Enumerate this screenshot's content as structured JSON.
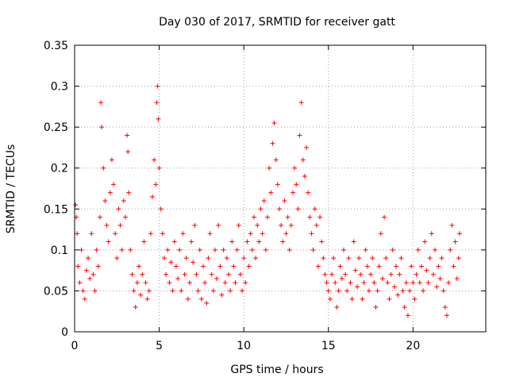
{
  "chart_data": {
    "type": "scatter",
    "title": "Day 030 of 2017, SRMTID for receiver gatt",
    "xlabel": "GPS time / hours",
    "ylabel": "SRMTID / TECUs",
    "xlim": [
      0,
      24.3
    ],
    "ylim": [
      0,
      0.35
    ],
    "xticks": [
      0,
      5,
      10,
      15,
      20
    ],
    "xtick_labels": [
      "0",
      "5",
      "10",
      "15",
      "20"
    ],
    "yticks": [
      0,
      0.05,
      0.1,
      0.15,
      0.2,
      0.25,
      0.3,
      0.35
    ],
    "ytick_labels": [
      "0",
      "0.05",
      "0.1",
      "0.15",
      "0.2",
      "0.25",
      "0.3",
      "0.35"
    ],
    "grid": true,
    "marker": "+",
    "color": "#ff0000",
    "series": [
      {
        "name": "SRMTID",
        "points": [
          [
            0.05,
            0.155
          ],
          [
            0.1,
            0.14
          ],
          [
            0.15,
            0.12
          ],
          [
            0.2,
            0.08
          ],
          [
            0.3,
            0.06
          ],
          [
            0.4,
            0.1
          ],
          [
            0.5,
            0.05
          ],
          [
            0.6,
            0.04
          ],
          [
            0.7,
            0.075
          ],
          [
            0.8,
            0.09
          ],
          [
            0.9,
            0.065
          ],
          [
            1.0,
            0.12
          ],
          [
            1.1,
            0.07
          ],
          [
            1.2,
            0.05
          ],
          [
            1.3,
            0.1
          ],
          [
            1.4,
            0.08
          ],
          [
            1.5,
            0.14
          ],
          [
            1.55,
            0.28
          ],
          [
            1.6,
            0.25
          ],
          [
            1.7,
            0.2
          ],
          [
            1.8,
            0.16
          ],
          [
            1.9,
            0.13
          ],
          [
            2.0,
            0.11
          ],
          [
            2.1,
            0.17
          ],
          [
            2.2,
            0.21
          ],
          [
            2.3,
            0.18
          ],
          [
            2.4,
            0.12
          ],
          [
            2.5,
            0.09
          ],
          [
            2.6,
            0.15
          ],
          [
            2.7,
            0.13
          ],
          [
            2.8,
            0.1
          ],
          [
            2.9,
            0.16
          ],
          [
            3.0,
            0.14
          ],
          [
            3.1,
            0.24
          ],
          [
            3.15,
            0.22
          ],
          [
            3.2,
            0.17
          ],
          [
            3.3,
            0.1
          ],
          [
            3.4,
            0.07
          ],
          [
            3.5,
            0.05
          ],
          [
            3.6,
            0.03
          ],
          [
            3.7,
            0.06
          ],
          [
            3.8,
            0.08
          ],
          [
            3.9,
            0.045
          ],
          [
            4.0,
            0.07
          ],
          [
            4.1,
            0.11
          ],
          [
            4.2,
            0.06
          ],
          [
            4.3,
            0.04
          ],
          [
            4.4,
            0.05
          ],
          [
            4.5,
            0.12
          ],
          [
            4.6,
            0.165
          ],
          [
            4.7,
            0.21
          ],
          [
            4.8,
            0.18
          ],
          [
            4.85,
            0.28
          ],
          [
            4.9,
            0.3
          ],
          [
            4.95,
            0.26
          ],
          [
            5.0,
            0.2
          ],
          [
            5.1,
            0.15
          ],
          [
            5.2,
            0.12
          ],
          [
            5.3,
            0.09
          ],
          [
            5.4,
            0.07
          ],
          [
            5.5,
            0.1
          ],
          [
            5.6,
            0.06
          ],
          [
            5.7,
            0.085
          ],
          [
            5.8,
            0.05
          ],
          [
            5.9,
            0.11
          ],
          [
            6.0,
            0.08
          ],
          [
            6.1,
            0.065
          ],
          [
            6.2,
            0.1
          ],
          [
            6.3,
            0.05
          ],
          [
            6.4,
            0.12
          ],
          [
            6.5,
            0.07
          ],
          [
            6.6,
            0.09
          ],
          [
            6.7,
            0.04
          ],
          [
            6.8,
            0.06
          ],
          [
            6.9,
            0.11
          ],
          [
            7.0,
            0.085
          ],
          [
            7.1,
            0.13
          ],
          [
            7.2,
            0.07
          ],
          [
            7.3,
            0.05
          ],
          [
            7.4,
            0.1
          ],
          [
            7.5,
            0.04
          ],
          [
            7.6,
            0.08
          ],
          [
            7.7,
            0.06
          ],
          [
            7.8,
            0.035
          ],
          [
            7.9,
            0.09
          ],
          [
            8.0,
            0.12
          ],
          [
            8.1,
            0.07
          ],
          [
            8.2,
            0.05
          ],
          [
            8.3,
            0.1
          ],
          [
            8.4,
            0.065
          ],
          [
            8.5,
            0.13
          ],
          [
            8.6,
            0.08
          ],
          [
            8.7,
            0.045
          ],
          [
            8.8,
            0.1
          ],
          [
            8.9,
            0.06
          ],
          [
            9.0,
            0.09
          ],
          [
            9.1,
            0.07
          ],
          [
            9.2,
            0.05
          ],
          [
            9.3,
            0.11
          ],
          [
            9.4,
            0.08
          ],
          [
            9.5,
            0.06
          ],
          [
            9.6,
            0.1
          ],
          [
            9.7,
            0.13
          ],
          [
            9.8,
            0.07
          ],
          [
            9.9,
            0.05
          ],
          [
            10.0,
            0.09
          ],
          [
            10.1,
            0.06
          ],
          [
            10.2,
            0.11
          ],
          [
            10.3,
            0.08
          ],
          [
            10.4,
            0.12
          ],
          [
            10.5,
            0.1
          ],
          [
            10.6,
            0.14
          ],
          [
            10.7,
            0.09
          ],
          [
            10.8,
            0.13
          ],
          [
            10.9,
            0.11
          ],
          [
            11.0,
            0.15
          ],
          [
            11.1,
            0.12
          ],
          [
            11.2,
            0.16
          ],
          [
            11.3,
            0.1
          ],
          [
            11.4,
            0.14
          ],
          [
            11.5,
            0.2
          ],
          [
            11.6,
            0.17
          ],
          [
            11.7,
            0.23
          ],
          [
            11.8,
            0.255
          ],
          [
            11.9,
            0.21
          ],
          [
            12.0,
            0.18
          ],
          [
            12.1,
            0.15
          ],
          [
            12.2,
            0.13
          ],
          [
            12.3,
            0.11
          ],
          [
            12.4,
            0.16
          ],
          [
            12.5,
            0.12
          ],
          [
            12.6,
            0.14
          ],
          [
            12.7,
            0.1
          ],
          [
            12.8,
            0.13
          ],
          [
            12.9,
            0.17
          ],
          [
            13.0,
            0.2
          ],
          [
            13.1,
            0.18
          ],
          [
            13.2,
            0.15
          ],
          [
            13.3,
            0.24
          ],
          [
            13.4,
            0.28
          ],
          [
            13.5,
            0.21
          ],
          [
            13.6,
            0.19
          ],
          [
            13.7,
            0.225
          ],
          [
            13.8,
            0.17
          ],
          [
            13.9,
            0.14
          ],
          [
            14.0,
            0.12
          ],
          [
            14.1,
            0.1
          ],
          [
            14.2,
            0.15
          ],
          [
            14.3,
            0.13
          ],
          [
            14.4,
            0.08
          ],
          [
            14.5,
            0.14
          ],
          [
            14.6,
            0.11
          ],
          [
            14.7,
            0.09
          ],
          [
            14.8,
            0.07
          ],
          [
            14.9,
            0.06
          ],
          [
            15.0,
            0.05
          ],
          [
            15.1,
            0.04
          ],
          [
            15.2,
            0.07
          ],
          [
            15.3,
            0.09
          ],
          [
            15.4,
            0.06
          ],
          [
            15.5,
            0.03
          ],
          [
            15.6,
            0.05
          ],
          [
            15.7,
            0.08
          ],
          [
            15.8,
            0.065
          ],
          [
            15.9,
            0.1
          ],
          [
            16.0,
            0.07
          ],
          [
            16.1,
            0.05
          ],
          [
            16.2,
            0.09
          ],
          [
            16.3,
            0.06
          ],
          [
            16.4,
            0.04
          ],
          [
            16.5,
            0.11
          ],
          [
            16.6,
            0.075
          ],
          [
            16.7,
            0.055
          ],
          [
            16.8,
            0.09
          ],
          [
            16.9,
            0.07
          ],
          [
            17.0,
            0.04
          ],
          [
            17.1,
            0.06
          ],
          [
            17.2,
            0.1
          ],
          [
            17.3,
            0.08
          ],
          [
            17.4,
            0.05
          ],
          [
            17.5,
            0.07
          ],
          [
            17.6,
            0.09
          ],
          [
            17.7,
            0.06
          ],
          [
            17.8,
            0.03
          ],
          [
            17.9,
            0.05
          ],
          [
            18.0,
            0.08
          ],
          [
            18.1,
            0.12
          ],
          [
            18.2,
            0.065
          ],
          [
            18.3,
            0.14
          ],
          [
            18.4,
            0.09
          ],
          [
            18.5,
            0.06
          ],
          [
            18.6,
            0.04
          ],
          [
            18.7,
            0.07
          ],
          [
            18.8,
            0.1
          ],
          [
            18.9,
            0.055
          ],
          [
            19.0,
            0.08
          ],
          [
            19.1,
            0.045
          ],
          [
            19.2,
            0.07
          ],
          [
            19.3,
            0.09
          ],
          [
            19.4,
            0.05
          ],
          [
            19.5,
            0.03
          ],
          [
            19.6,
            0.06
          ],
          [
            19.7,
            0.02
          ],
          [
            19.8,
            0.05
          ],
          [
            19.9,
            0.08
          ],
          [
            20.0,
            0.06
          ],
          [
            20.1,
            0.04
          ],
          [
            20.2,
            0.07
          ],
          [
            20.3,
            0.1
          ],
          [
            20.4,
            0.06
          ],
          [
            20.5,
            0.08
          ],
          [
            20.6,
            0.05
          ],
          [
            20.7,
            0.11
          ],
          [
            20.8,
            0.075
          ],
          [
            20.9,
            0.06
          ],
          [
            21.0,
            0.09
          ],
          [
            21.1,
            0.12
          ],
          [
            21.2,
            0.07
          ],
          [
            21.3,
            0.1
          ],
          [
            21.4,
            0.055
          ],
          [
            21.5,
            0.08
          ],
          [
            21.6,
            0.065
          ],
          [
            21.7,
            0.09
          ],
          [
            21.8,
            0.05
          ],
          [
            21.9,
            0.03
          ],
          [
            22.0,
            0.02
          ],
          [
            22.1,
            0.06
          ],
          [
            22.2,
            0.1
          ],
          [
            22.3,
            0.13
          ],
          [
            22.4,
            0.08
          ],
          [
            22.5,
            0.11
          ],
          [
            22.6,
            0.065
          ],
          [
            22.7,
            0.09
          ],
          [
            22.75,
            0.12
          ]
        ]
      }
    ]
  }
}
